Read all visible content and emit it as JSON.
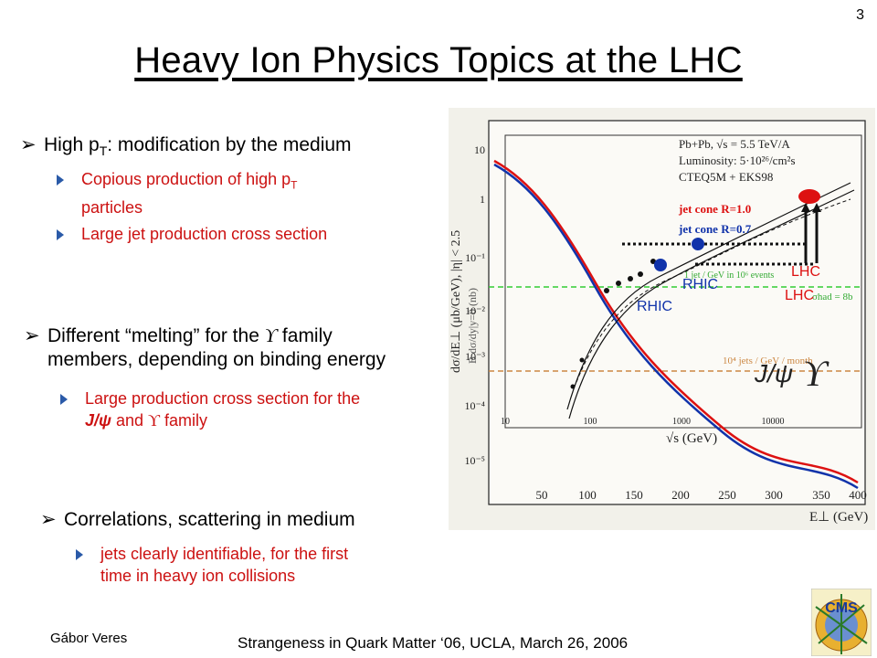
{
  "slide_number": "3",
  "title": "Heavy Ion Physics Topics at the LHC",
  "bullets": [
    {
      "pre": "High p",
      "sub": "T",
      "post": ": modification by the medium",
      "items": [
        {
          "line1_pre": "Copious production of high p",
          "line1_sub": "T",
          "line2": "particles"
        },
        {
          "text": "Large jet production cross section"
        }
      ]
    },
    {
      "line1_pre": "Different “melting” for the ",
      "upsilon": "ϒ",
      "line1_post": " family",
      "line2": "members, depending on binding energy",
      "items": [
        {
          "line1": "Large production cross section for the",
          "jpsi": "J/ψ",
          "mid": " and ",
          "upsilon": "ϒ",
          "post": " family"
        }
      ]
    },
    {
      "text": "Correlations, scattering in medium",
      "items": [
        {
          "line1": "jets clearly identifiable, for the first",
          "line2": "time in heavy ion collisions"
        }
      ]
    }
  ],
  "figure": {
    "legend_lines": [
      "Pb+Pb, √s = 5.5 TeV/A",
      "Luminosity: 5·10²⁶/cm²s",
      "CTEQ5M + EKS98"
    ],
    "jet_cone_1": "jet cone  R=1.0",
    "jet_cone_2": "jet cone  R=0.7",
    "y_axis_label": "dσ/dE⊥ (μb/GeV),  |η| < 2.5",
    "y2_axis_label": "B dσ/dy|y=0 (nb)",
    "x_axis_label": "E⊥ (GeV)",
    "inset_x_label": "√s (GeV)",
    "lhc_label": "LHC",
    "rhic_label": "RHIC",
    "jpsi_label": "J/ψ",
    "upsilon_label": "ϒ",
    "green_note": "1 jet / GeV in 10⁶ events",
    "sigma_note": "σhad = 8b",
    "orange_note": "10⁴ jets / GeV / month",
    "y_ticks": [
      "10",
      "1",
      "10⁻¹",
      "10⁻²",
      "10⁻³",
      "10⁻⁴",
      "10⁻⁵"
    ],
    "x_ticks": [
      "50",
      "100",
      "150",
      "200",
      "250",
      "300",
      "350",
      "400"
    ],
    "inset_x_ticks": [
      "10",
      "100",
      "1000",
      "10000"
    ],
    "colors": {
      "red": "#dd1111",
      "blue": "#1133aa",
      "green": "#33cc33",
      "orange": "#cc8844"
    }
  },
  "footer": {
    "author": "Gábor Veres",
    "conference": "Strangeness in Quark Matter ‘06, UCLA, March 26, 2006"
  },
  "logo_text": "CMS"
}
